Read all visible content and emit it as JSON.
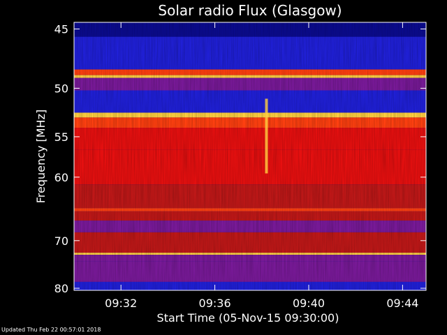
{
  "chart_data": {
    "type": "heatmap",
    "title": "Solar radio Flux (Glasgow)",
    "xlabel": "Start Time (05-Nov-15 09:30:00)",
    "ylabel": "Frequency [MHz]",
    "x_ticks": [
      "09:32",
      "09:36",
      "09:40",
      "09:44"
    ],
    "x_tick_minutes": [
      2,
      6,
      10,
      14
    ],
    "xlim_minutes": [
      0,
      15
    ],
    "y_ticks": [
      45,
      50,
      55,
      60,
      70,
      80
    ],
    "ylim": [
      44.5,
      80.5
    ],
    "y_scale": "reciprocal",
    "colormap": [
      "#0b0b8f",
      "#2020d8",
      "#7a1a9a",
      "#c01818",
      "#e81010",
      "#ff4010",
      "#ffd040"
    ],
    "bands": [
      {
        "f_min": 44.5,
        "f_max": 45.6,
        "level": 0.08
      },
      {
        "f_min": 45.6,
        "f_max": 48.3,
        "level": 0.22
      },
      {
        "f_min": 48.3,
        "f_max": 48.8,
        "level": 0.85
      },
      {
        "f_min": 48.8,
        "f_max": 49.05,
        "level": 1.0
      },
      {
        "f_min": 49.05,
        "f_max": 50.2,
        "level": 0.35
      },
      {
        "f_min": 50.2,
        "f_max": 52.4,
        "level": 0.15
      },
      {
        "f_min": 52.4,
        "f_max": 52.9,
        "level": 1.0
      },
      {
        "f_min": 52.9,
        "f_max": 54.0,
        "level": 0.75
      },
      {
        "f_min": 54.0,
        "f_max": 56.5,
        "level": 0.7
      },
      {
        "f_min": 56.5,
        "f_max": 61.0,
        "level": 0.72
      },
      {
        "f_min": 61.0,
        "f_max": 64.5,
        "level": 0.55
      },
      {
        "f_min": 64.5,
        "f_max": 65.0,
        "level": 0.8
      },
      {
        "f_min": 65.0,
        "f_max": 66.5,
        "level": 0.45
      },
      {
        "f_min": 66.5,
        "f_max": 68.5,
        "level": 0.3
      },
      {
        "f_min": 68.5,
        "f_max": 72.3,
        "level": 0.5
      },
      {
        "f_min": 72.3,
        "f_max": 72.7,
        "level": 1.0
      },
      {
        "f_min": 72.7,
        "f_max": 74.0,
        "level": 0.4
      },
      {
        "f_min": 74.0,
        "f_max": 78.5,
        "level": 0.25
      },
      {
        "f_min": 78.5,
        "f_max": 80.5,
        "level": 0.12
      }
    ],
    "burst": {
      "minute": 8.2,
      "f_min": 51.0,
      "f_max": 59.5,
      "level": 0.95
    }
  },
  "footer": {
    "updated": "Updated Thu Feb 22 00:57:01 2018"
  }
}
